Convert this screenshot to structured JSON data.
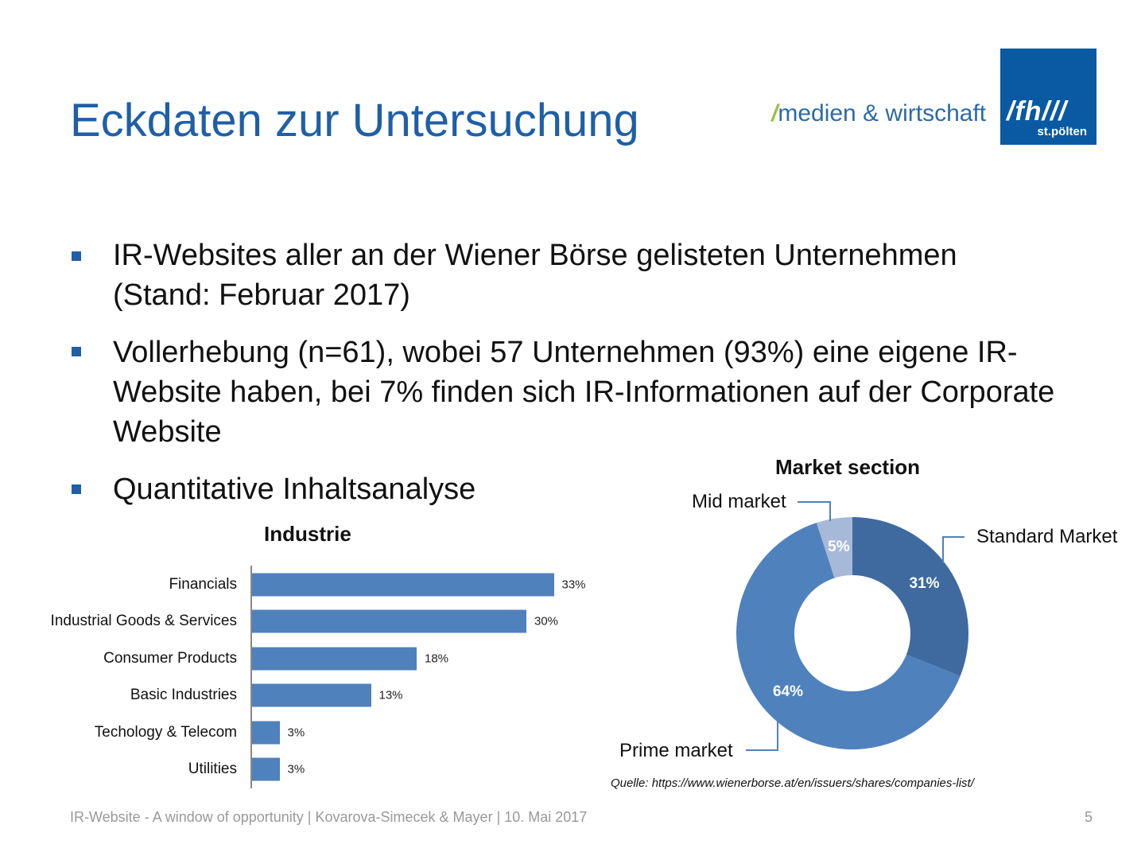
{
  "title": "Eckdaten zur Untersuchung",
  "logo": {
    "text": "medien & wirtschaft",
    "mark": "/fh///",
    "sub": "st.pölten",
    "brand_color": "#0a5aa3",
    "accent": "#9ac23c"
  },
  "bullets": [
    "IR-Websites aller an der Wiener Börse gelisteten Unternehmen (Stand: Februar 2017)",
    "Vollerhebung (n=61), wobei 57 Unternehmen (93%) eine eigene IR-Website haben, bei 7% finden sich IR-Informationen auf der Corporate Website",
    "Quantitative Inhaltsanalyse"
  ],
  "chart_data": [
    {
      "type": "bar",
      "orientation": "horizontal",
      "title": "Industrie",
      "categories": [
        "Financials",
        "Industrial Goods & Services",
        "Consumer Products",
        "Basic Industries",
        "Techology & Telecom",
        "Utilities"
      ],
      "values": [
        33,
        30,
        18,
        13,
        3,
        3
      ],
      "labels": [
        "33%",
        "30%",
        "18%",
        "13%",
        "3%",
        "3%"
      ],
      "unit": "%",
      "color": "#4f81bd",
      "grid": false
    },
    {
      "type": "pie",
      "donut": true,
      "title": "Market section",
      "slices": [
        {
          "name": "Standard Market",
          "value": 31,
          "label": "31%",
          "color": "#3e6aa0"
        },
        {
          "name": "Prime market",
          "value": 64,
          "label": "64%",
          "color": "#4f81bd"
        },
        {
          "name": "Mid market",
          "value": 5,
          "label": "5%",
          "color": "#a7b9d9"
        }
      ]
    }
  ],
  "source": "Quelle: https://www.wienerborse.at/en/issuers/shares/companies-list/",
  "footer": "IR-Website - A window of opportunity | Kovarova-Simecek & Mayer | 10. Mai 2017",
  "page_number": "5"
}
